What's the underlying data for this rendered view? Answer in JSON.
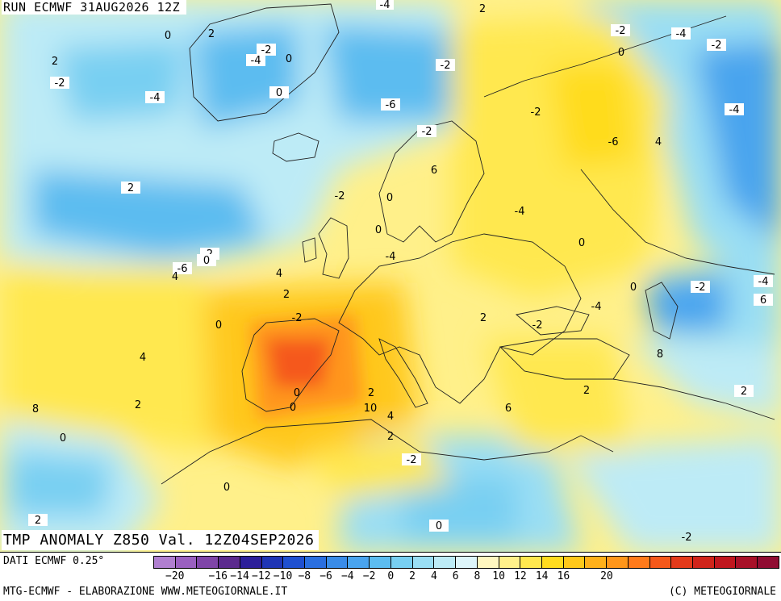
{
  "run_title": "RUN ECMWF 31AUG2026 12Z",
  "map_title": "TMP ANOMALY Z850 Val. 12Z04SEP2026",
  "footer": {
    "dati": "DATI ECMWF 0.25°",
    "credit_left": "MTG-ECMWF - ELABORAZIONE WWW.METEOGIORNALE.IT",
    "credit_right": "(C) METEOGIORNALE"
  },
  "legend": {
    "colors": [
      "#b07fd0",
      "#9a60c0",
      "#7f45a8",
      "#5b2a8e",
      "#2c1f9a",
      "#1f35b5",
      "#1f50d0",
      "#2a6fe0",
      "#3a8ce8",
      "#4aa4ee",
      "#5cbcf0",
      "#78cff2",
      "#9adef4",
      "#bdebf6",
      "#ddf5fa",
      "#fff7c0",
      "#fff08a",
      "#ffe84f",
      "#ffdc1f",
      "#ffc81a",
      "#ffb01a",
      "#ff961a",
      "#ff7a1a",
      "#f5581a",
      "#e43a1a",
      "#d0241a",
      "#c0161e",
      "#a81028",
      "#900c32"
    ],
    "ticks": [
      "-20",
      "-18",
      "-16",
      "-14",
      "-12",
      "-10",
      "-8",
      "-6",
      "-4",
      "-2",
      "0",
      "2",
      "4",
      "6",
      "8",
      "10",
      "12",
      "14",
      "16",
      "18",
      "20"
    ],
    "tick_labels": [
      "−20",
      "−16",
      "−14",
      "−12",
      "−10",
      "−8",
      "−6",
      "−4",
      "−2",
      "0",
      "2",
      "4",
      "6",
      "8",
      "10",
      "12",
      "14",
      "16",
      "20"
    ]
  },
  "contour_labels": [
    "-4",
    "2",
    "0",
    "2",
    "-2",
    "-4",
    "-2",
    "0",
    "-2",
    "-4",
    "-2",
    "-6",
    "-4",
    "0",
    "2",
    "-2",
    "-4",
    "0",
    "-2",
    "-2",
    "-6",
    "4",
    "6",
    "2",
    "-2",
    "0",
    "-4",
    "0",
    "0",
    "2",
    "0",
    "-4",
    "-6",
    "4",
    "4",
    "-2",
    "-4",
    "0",
    "2",
    "6",
    "-4",
    "-2",
    "2",
    "0",
    "-2",
    "8",
    "4",
    "2",
    "2",
    "0",
    "2",
    "2",
    "0",
    "10",
    "6",
    "8",
    "4",
    "2",
    "0",
    "-2",
    "0",
    "2",
    "0",
    "-2",
    "-2",
    "0",
    "4",
    "0"
  ]
}
